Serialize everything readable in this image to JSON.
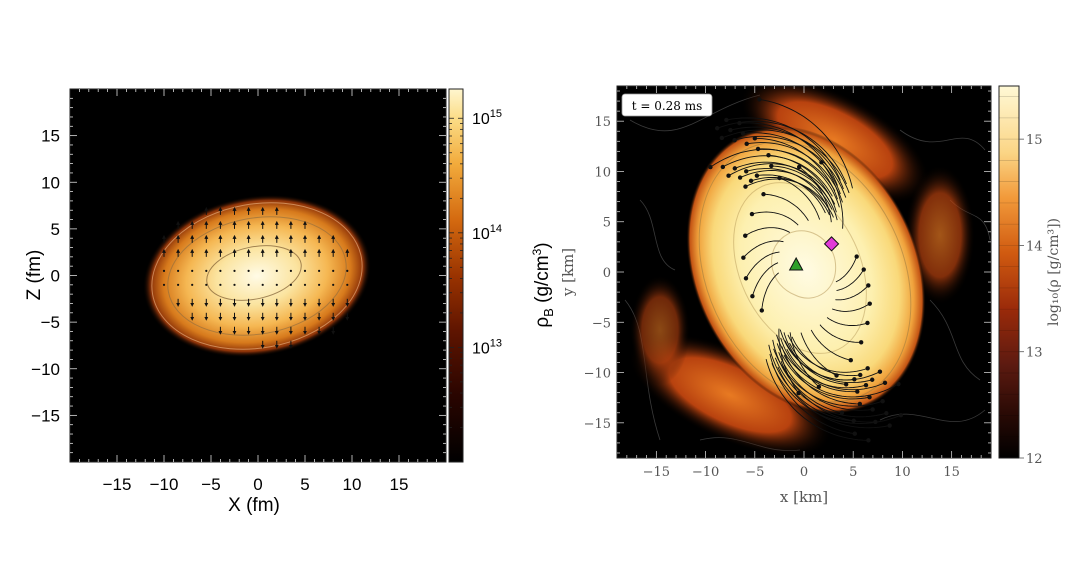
{
  "chart_data": [
    {
      "type": "heatmap",
      "panel": "left",
      "description_role": "baryon density of a nucleus-like ellipsoid with arrows",
      "xlabel": "X (fm)",
      "ylabel": "Z (fm)",
      "xlim": [
        -20,
        20
      ],
      "ylim": [
        -20,
        20
      ],
      "xticks": [
        -15,
        -10,
        -5,
        0,
        5,
        10,
        15
      ],
      "yticks": [
        -15,
        -10,
        -5,
        0,
        5,
        10,
        15
      ],
      "xtick_labels": [
        "−15",
        "−10",
        "−5",
        "0",
        "5",
        "10",
        "15"
      ],
      "ytick_labels": [
        "−15",
        "−10",
        "−5",
        "0",
        "5",
        "10",
        "15"
      ],
      "colorbar": {
        "label_main": "ρ",
        "label_sub": "B",
        "label_unit": " (g/cm",
        "label_unit_sup": "3",
        "label_close": ")",
        "scale": "log",
        "range": [
          1000000000000.0,
          1800000000000000.0
        ],
        "ticks": [
          {
            "value": 1000000000000000.0,
            "base": "10",
            "exp": "15"
          },
          {
            "value": 100000000000000.0,
            "base": "10",
            "exp": "14"
          },
          {
            "value": 10000000000000.0,
            "base": "10",
            "exp": "13"
          }
        ]
      },
      "blob": {
        "center_x": 0,
        "center_z": 0,
        "semi_x": 11.5,
        "semi_z": 7.2,
        "tilt_deg": -12,
        "peak_log_rho": 15.2
      },
      "grid_on": false
    },
    {
      "type": "heatmap",
      "panel": "right",
      "description_role": "neutron star merger remnant density with tracer paths",
      "annotation": "t = 0.28 ms",
      "xlabel": "x [km]",
      "ylabel": "y [km]",
      "xlim": [
        -19,
        19
      ],
      "ylim": [
        -18.5,
        18.5
      ],
      "xticks": [
        -15,
        -10,
        -5,
        0,
        5,
        10,
        15
      ],
      "yticks": [
        -15,
        -10,
        -5,
        0,
        5,
        10,
        15
      ],
      "xtick_labels": [
        "−15",
        "−10",
        "−5",
        "0",
        "5",
        "10",
        "15"
      ],
      "ytick_labels": [
        "−15",
        "−10",
        "−5",
        "0",
        "5",
        "10",
        "15"
      ],
      "colorbar": {
        "label": "log₁₀(ρ [g/cm³])",
        "scale": "linear",
        "range": [
          12,
          15.5
        ],
        "ticks": [
          {
            "value": 12,
            "label": "12"
          },
          {
            "value": 13,
            "label": "13"
          },
          {
            "value": 14,
            "label": "14"
          },
          {
            "value": 15,
            "label": "15"
          }
        ]
      },
      "markers": [
        {
          "shape": "triangle",
          "x": -0.8,
          "y": 0.7,
          "color": "#2fa02a"
        },
        {
          "shape": "diamond",
          "x": 2.8,
          "y": 2.8,
          "color": "#e23ad8"
        }
      ],
      "grid_on": false
    }
  ],
  "colors": {
    "background": "#ffffff",
    "plot_bg": "#000000",
    "colormap_hot": [
      "#000000",
      "#2a0500",
      "#5e1400",
      "#9a3300",
      "#d46a10",
      "#f2ab3c",
      "#fbdc86",
      "#fff6cf"
    ]
  }
}
